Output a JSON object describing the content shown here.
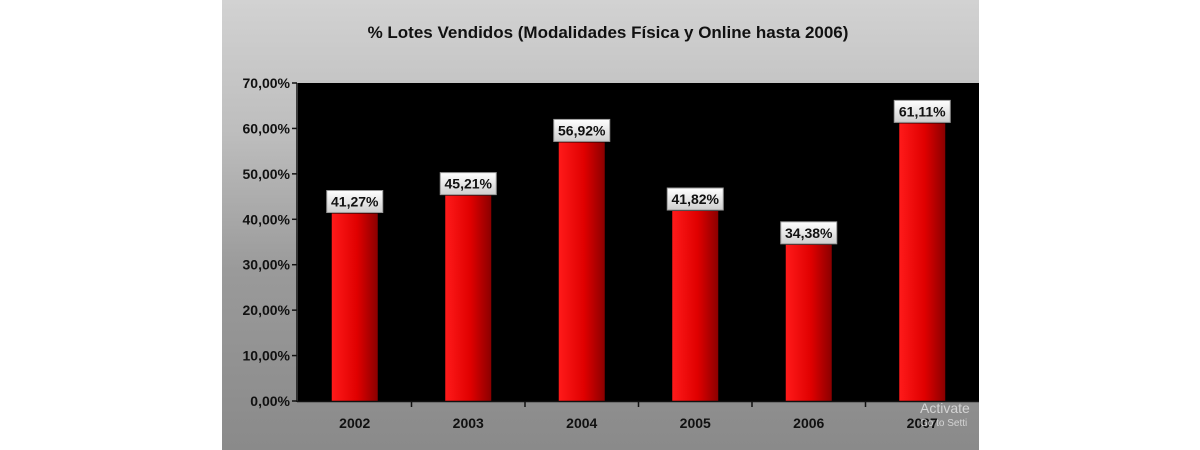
{
  "chart_data": {
    "type": "bar",
    "title": "% Lotes Vendidos (Modalidades Física y Online hasta 2006)",
    "categories": [
      "2002",
      "2003",
      "2004",
      "2005",
      "2006",
      "2007"
    ],
    "values": [
      41.27,
      45.21,
      56.92,
      41.82,
      34.38,
      61.11
    ],
    "data_labels": [
      "41,27%",
      "45,21%",
      "56,92%",
      "41,82%",
      "34,38%",
      "61,11%"
    ],
    "y_ticks": [
      0,
      10,
      20,
      30,
      40,
      50,
      60,
      70
    ],
    "y_tick_labels": [
      "0,00%",
      "10,00%",
      "20,00%",
      "30,00%",
      "40,00%",
      "50,00%",
      "60,00%",
      "70,00%"
    ],
    "ylim": [
      0,
      70
    ],
    "xlabel": "",
    "ylabel": "",
    "grid": false,
    "legend": "none",
    "colors": {
      "bar": "#ee0000",
      "bar_dark": "#8a0000",
      "plot_background": "#000000",
      "label_box": "#f2f2f2"
    }
  },
  "overlay": {
    "watermark_line1": "Activate",
    "watermark_line2": "Go to Setti"
  }
}
